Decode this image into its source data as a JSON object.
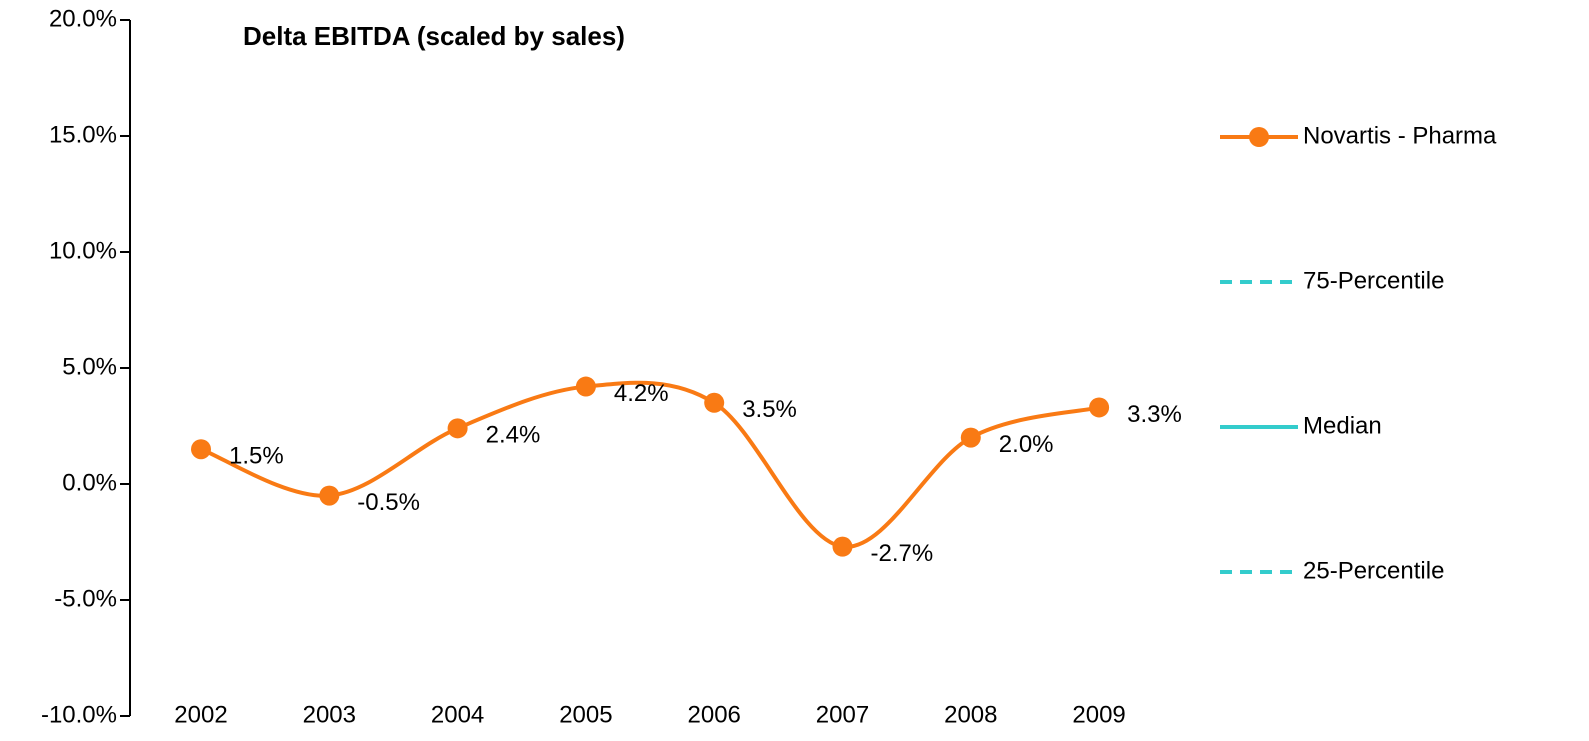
{
  "chart_data": {
    "type": "line",
    "title": "Delta EBITDA (scaled by sales)",
    "categories": [
      "2002",
      "2003",
      "2004",
      "2005",
      "2006",
      "2007",
      "2008",
      "2009"
    ],
    "series": [
      {
        "name": "Novartis - Pharma",
        "color": "#f97a14",
        "marker": true,
        "dash": false,
        "values": [
          1.5,
          -0.5,
          2.4,
          4.2,
          3.5,
          -2.7,
          2.0,
          3.3
        ],
        "value_labels": [
          "1.5%",
          "-0.5%",
          "2.4%",
          "4.2%",
          "3.5%",
          "-2.7%",
          "2.0%",
          "3.3%"
        ]
      },
      {
        "name": "75-Percentile",
        "color": "#33cccc",
        "marker": false,
        "dash": true,
        "values": [
          null,
          null,
          null,
          null,
          null,
          null,
          null,
          null
        ]
      },
      {
        "name": "Median",
        "color": "#33cccc",
        "marker": false,
        "dash": false,
        "values": [
          null,
          null,
          null,
          null,
          null,
          null,
          null,
          null
        ]
      },
      {
        "name": "25-Percentile",
        "color": "#33cccc",
        "marker": false,
        "dash": true,
        "values": [
          null,
          null,
          null,
          null,
          null,
          null,
          null,
          null
        ]
      }
    ],
    "ylim": [
      -10,
      20
    ],
    "yticks": [
      {
        "value": -10,
        "label": "-10.0%"
      },
      {
        "value": -5,
        "label": "-5.0%"
      },
      {
        "value": 0,
        "label": "0.0%"
      },
      {
        "value": 5,
        "label": "5.0%"
      },
      {
        "value": 10,
        "label": "10.0%"
      },
      {
        "value": 15,
        "label": "15.0%"
      },
      {
        "value": 20,
        "label": "20.0%"
      }
    ],
    "label_color": "#17375e",
    "legend": "right"
  }
}
